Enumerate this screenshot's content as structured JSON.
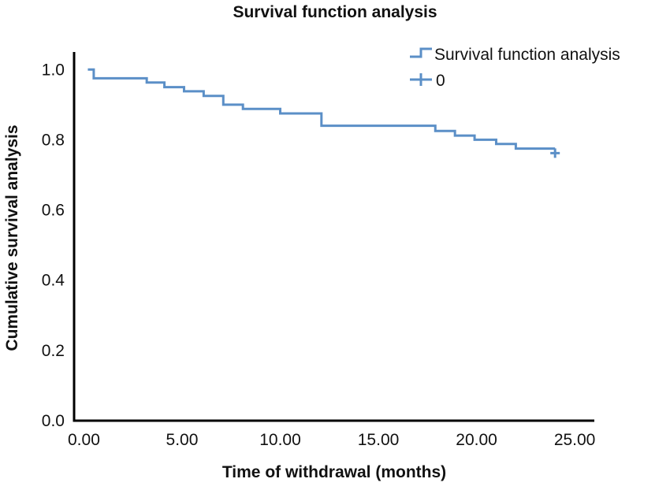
{
  "chart_data": {
    "type": "line",
    "subtype": "kaplan-meier step",
    "title": "Survival function analysis",
    "xlabel": "Time of withdrawal (months)",
    "ylabel": "Cumulative survival analysis",
    "xlim": [
      -0.5,
      26
    ],
    "ylim": [
      0,
      1.05
    ],
    "xticks": [
      0,
      5,
      10,
      15,
      20,
      25
    ],
    "xtick_labels": [
      "0.00",
      "5.00",
      "10.00",
      "15.00",
      "20.00",
      "25.00"
    ],
    "yticks": [
      0,
      0.2,
      0.4,
      0.6,
      0.8,
      1.0
    ],
    "ytick_labels": [
      "0.0",
      "0.2",
      "0.4",
      "0.6",
      "0.8",
      "1.0"
    ],
    "grid": false,
    "legend": {
      "position": "top-right",
      "entries": [
        "Survival function analysis",
        "0"
      ]
    },
    "series": [
      {
        "name": "Survival function analysis",
        "color": "#5b8fc7",
        "steps": [
          [
            0.2,
            1.0
          ],
          [
            0.5,
            0.975
          ],
          [
            3.2,
            0.963
          ],
          [
            4.1,
            0.95
          ],
          [
            5.1,
            0.938
          ],
          [
            6.1,
            0.925
          ],
          [
            7.1,
            0.9
          ],
          [
            8.1,
            0.888
          ],
          [
            10.0,
            0.875
          ],
          [
            12.1,
            0.84
          ],
          [
            17.9,
            0.825
          ],
          [
            18.9,
            0.812
          ],
          [
            19.9,
            0.8
          ],
          [
            21.0,
            0.788
          ],
          [
            22.0,
            0.775
          ],
          [
            24.0,
            0.775
          ]
        ]
      }
    ],
    "censored": {
      "name": "0",
      "points": [
        [
          24.0,
          0.762
        ]
      ]
    }
  }
}
